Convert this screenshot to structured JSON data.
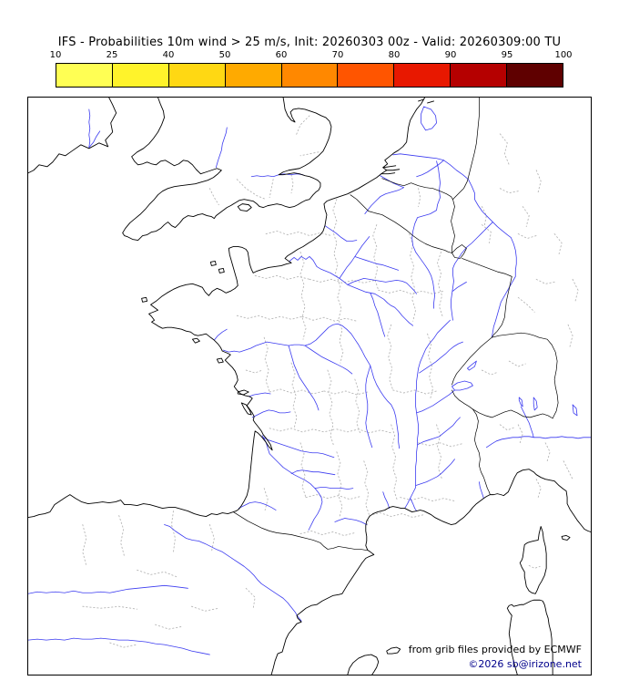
{
  "header": {
    "title": "IFS - Probabilities 10m wind > 25 m/s, Init: 20260303 00z - Valid: 20260309:00 TU"
  },
  "colorbar": {
    "tick_labels": [
      "10",
      "25",
      "40",
      "50",
      "60",
      "70",
      "80",
      "90",
      "95",
      "100"
    ],
    "segment_colors": [
      "#ffff54",
      "#fff32b",
      "#ffd813",
      "#ffaa00",
      "#ff8800",
      "#ff5500",
      "#e81800",
      "#b50000",
      "#5f0000"
    ]
  },
  "map": {
    "attribution_line1": "from grib files provided by ECMWF",
    "attribution_line2": "©2026 sb@irizone.net"
  },
  "colors": {
    "coastline": "#000000",
    "river": "#3b3bf0",
    "admin_boundary": "#b5b5b5",
    "copyright_text": "#00008b"
  }
}
